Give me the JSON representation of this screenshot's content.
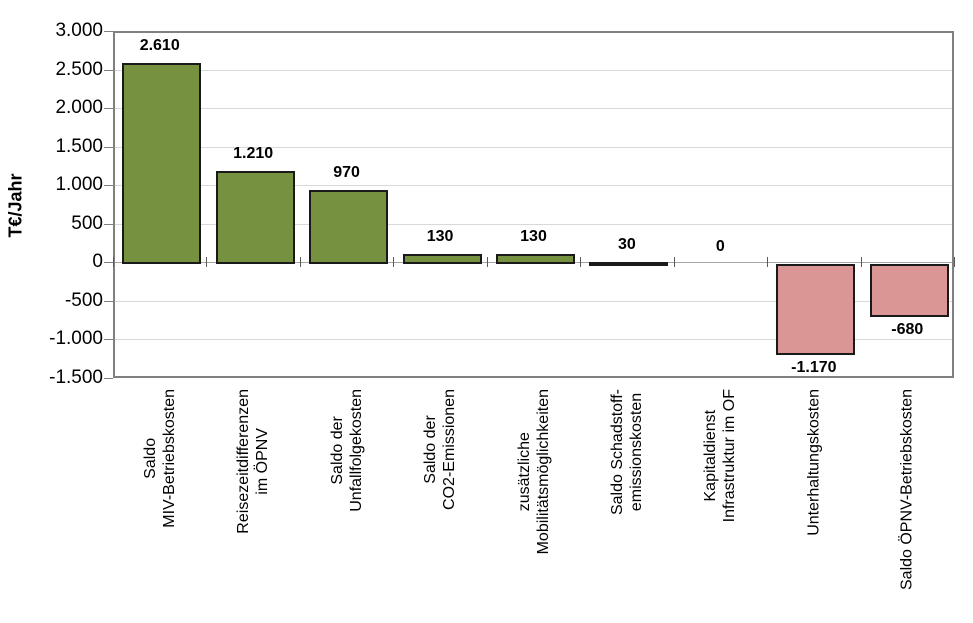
{
  "chart_data": {
    "type": "bar",
    "title": "",
    "xlabel": "",
    "ylabel": "T€/Jahr",
    "ylim": [
      -1500,
      3000
    ],
    "ytick_step": 500,
    "ytick_labels": [
      "3.000",
      "2.500",
      "2.000",
      "1.500",
      "1.000",
      "500",
      "0",
      "-500",
      "-1.000",
      "-1.500"
    ],
    "grid": true,
    "legend": "none",
    "categories": [
      [
        "Saldo",
        "MIV-Betriebskosten"
      ],
      [
        "Reisezeitdifferenzen",
        "im ÖPNV"
      ],
      [
        "Saldo der",
        "Unfallfolgekosten"
      ],
      [
        "Saldo der",
        "CO2-Emissionen"
      ],
      [
        "zusätzliche",
        "Mobilitätsmöglichkeiten"
      ],
      [
        "Saldo Schadstoff-",
        "emissionskosten"
      ],
      [
        "Kapitaldienst",
        "Infrastruktur im OF"
      ],
      [
        "Unterhaltungskosten"
      ],
      [
        "Saldo ÖPNV-Betriebskosten"
      ]
    ],
    "values": [
      2610,
      1210,
      970,
      130,
      130,
      30,
      0,
      -1170,
      -680
    ],
    "value_labels": [
      "2.610",
      "1.210",
      "970",
      "130",
      "130",
      "30",
      "0",
      "-1.170",
      "-680"
    ],
    "colors": {
      "positive_fill": "#769240",
      "negative_fill": "#d99694",
      "bar_border": "#1a1a1a",
      "gridline": "#d9d9d9",
      "plot_border": "#808080",
      "zero_axis": "#a6a6a6"
    }
  }
}
